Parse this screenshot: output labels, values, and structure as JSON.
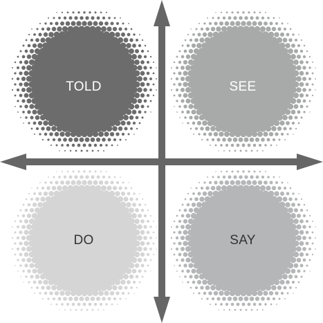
{
  "quadrants": [
    {
      "id": "top-left",
      "label": "TOLD",
      "fill": "#6c6c6c",
      "text_color": "#ffffff"
    },
    {
      "id": "top-right",
      "label": "SEE",
      "fill": "#a8a9a9",
      "text_color": "#ffffff"
    },
    {
      "id": "bottom-left",
      "label": "DO",
      "fill": "#d5d5d5",
      "text_color": "#333333"
    },
    {
      "id": "bottom-right",
      "label": "SAY",
      "fill": "#b5b6b7",
      "text_color": "#333333"
    }
  ],
  "axis_color": "#666666"
}
